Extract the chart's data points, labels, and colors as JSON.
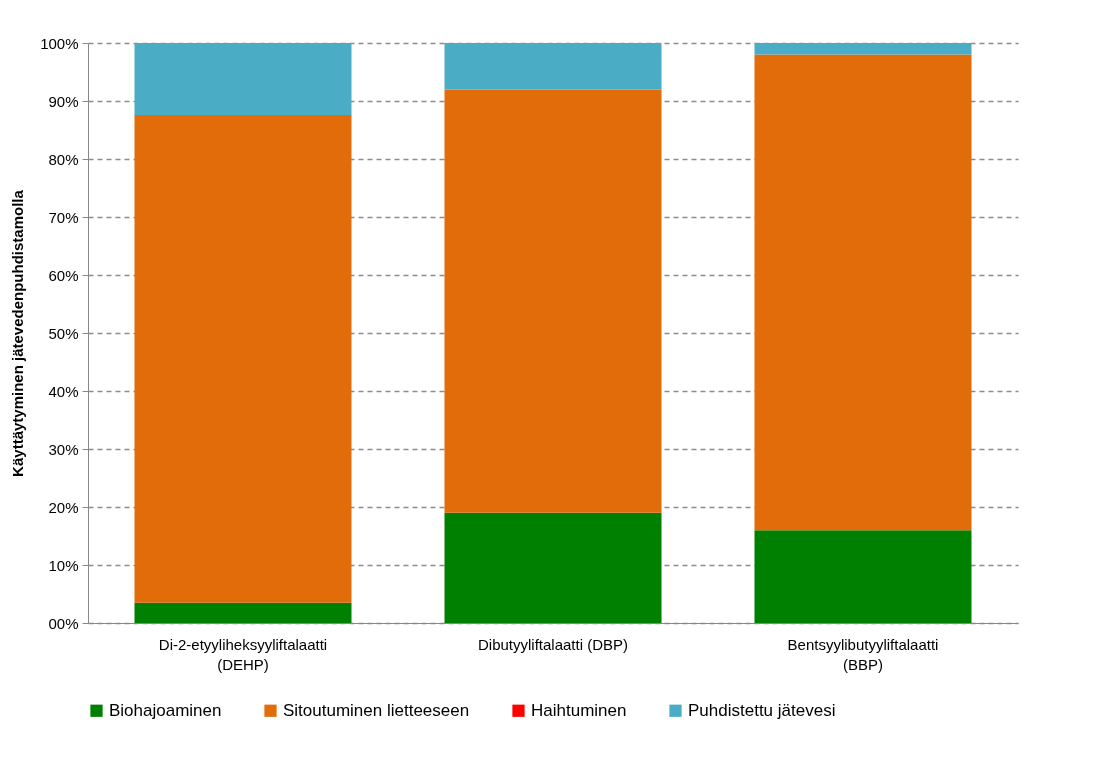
{
  "chart_data": {
    "type": "bar",
    "stacked": true,
    "ylabel": "Käyttäytyminen jätevedenpuhdistamolla",
    "categories": [
      "Di-2-etyyliheksyyliftalaatti (DEHP)",
      "Dibutyyliftalaatti (DBP)",
      "Bentsyylibutyyliftalaatti (BBP)"
    ],
    "series": [
      {
        "name": "Biohajoaminen",
        "color": "#008000",
        "values": [
          3.5,
          19,
          16
        ]
      },
      {
        "name": "Sitoutuminen lietteeseen",
        "color": "#e36c0a",
        "values": [
          84.1,
          73,
          82
        ]
      },
      {
        "name": "Haihtuminen",
        "color": "#ff0000",
        "values": [
          0,
          0,
          0
        ]
      },
      {
        "name": "Puhdistettu jätevesi",
        "color": "#4bacc6",
        "values": [
          12.4,
          8,
          2
        ]
      }
    ],
    "ylim": [
      0,
      100
    ],
    "yticks": [
      {
        "value": 0,
        "label": "00%"
      },
      {
        "value": 10,
        "label": "10%"
      },
      {
        "value": 20,
        "label": "20%"
      },
      {
        "value": 30,
        "label": "30%"
      },
      {
        "value": 40,
        "label": "40%"
      },
      {
        "value": 50,
        "label": "50%"
      },
      {
        "value": 60,
        "label": "60%"
      },
      {
        "value": 70,
        "label": "70%"
      },
      {
        "value": 80,
        "label": "80%"
      },
      {
        "value": 90,
        "label": "90%"
      },
      {
        "value": 100,
        "label": "100%"
      }
    ],
    "grid": "y",
    "legend": "bottom"
  }
}
